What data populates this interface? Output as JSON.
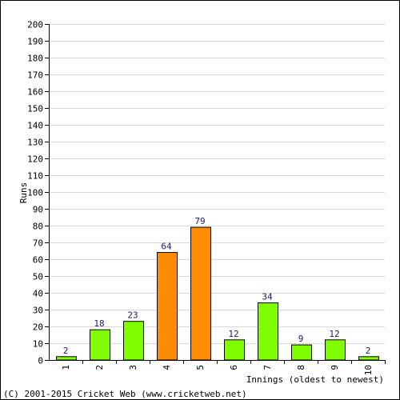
{
  "chart_data": {
    "type": "bar",
    "categories": [
      "1",
      "2",
      "3",
      "4",
      "5",
      "6",
      "7",
      "8",
      "9",
      "10"
    ],
    "values": [
      2,
      18,
      23,
      64,
      79,
      12,
      34,
      9,
      12,
      2
    ],
    "data_labels": [
      "2",
      "18",
      "23",
      "64",
      "79",
      "12",
      "34",
      "9",
      "12",
      "2"
    ],
    "bar_colors": [
      "#80ff00",
      "#80ff00",
      "#80ff00",
      "#ff8c00",
      "#ff8c00",
      "#80ff00",
      "#80ff00",
      "#80ff00",
      "#80ff00",
      "#80ff00"
    ],
    "title": "",
    "xlabel": "Innings (oldest to newest)",
    "ylabel": "Runs",
    "ylim": [
      0,
      200
    ],
    "y_ticks": [
      "0",
      "10",
      "20",
      "30",
      "40",
      "50",
      "60",
      "70",
      "80",
      "90",
      "100",
      "110",
      "120",
      "130",
      "140",
      "150",
      "160",
      "170",
      "180",
      "190",
      "200"
    ],
    "grid": true,
    "legend": "none"
  },
  "footer": {
    "copyright": "(C) 2001-2015 Cricket Web (www.cricketweb.net)"
  },
  "colors": {
    "background": "#ffffff",
    "border": "#000000",
    "grid": "#d9d9d9",
    "bar_outline": "#000000",
    "data_label": "#1a1a6e"
  }
}
